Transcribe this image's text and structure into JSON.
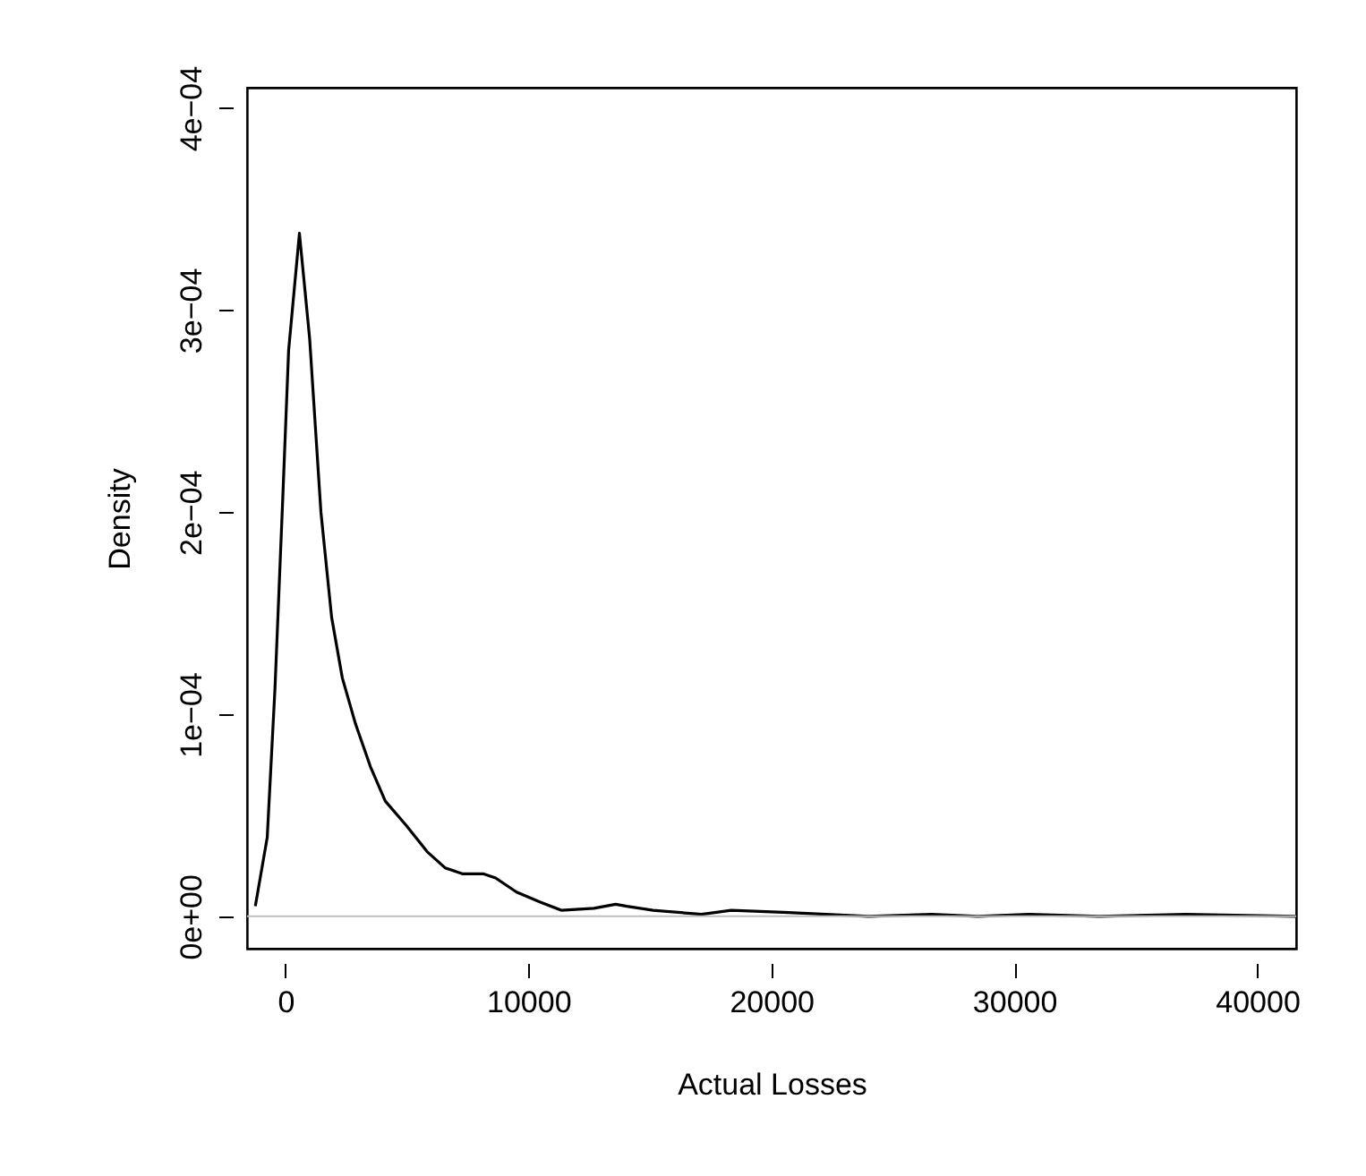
{
  "chart_data": {
    "type": "line",
    "xlabel": "Actual Losses",
    "ylabel": "Density",
    "x": [
      -1240,
      -750,
      -430,
      -110,
      130,
      575,
      995,
      1460,
      1900,
      2340,
      2890,
      3500,
      4110,
      4970,
      5830,
      6570,
      7300,
      8160,
      8650,
      9510,
      10490,
      11350,
      12700,
      13590,
      14050,
      15130,
      17120,
      18350,
      20500,
      24000,
      26600,
      28500,
      30600,
      33500,
      37060,
      41600
    ],
    "series": [
      {
        "color": "#000000",
        "values": [
          5e-06,
          3.9e-05,
          0.000113,
          0.000207,
          0.00028,
          0.000338,
          0.000286,
          0.0002,
          0.000148,
          0.000118,
          9.5e-05,
          7.4e-05,
          5.7e-05,
          4.5e-05,
          3.2e-05,
          2.4e-05,
          2.1e-05,
          2.1e-05,
          1.9e-05,
          1.2e-05,
          7e-06,
          3e-06,
          4e-06,
          6e-06,
          5e-06,
          3e-06,
          1e-06,
          3e-06,
          2e-06,
          0.0,
          1e-06,
          0.0,
          1e-06,
          0.0,
          1e-06,
          0.0
        ]
      }
    ],
    "xlim": [
      -1580,
      41600
    ],
    "xticks": [
      0,
      10000,
      20000,
      30000,
      40000
    ],
    "ylim": [
      -1.6e-05,
      0.00041
    ],
    "yticks": [
      {
        "value": 0,
        "label": "0e+00"
      },
      {
        "value": 0.0001,
        "label": "1e−04"
      },
      {
        "value": 0.0002,
        "label": "2e−04"
      },
      {
        "value": 0.0003,
        "label": "3e−04"
      },
      {
        "value": 0.0004,
        "label": "4e−04"
      }
    ],
    "ref_lines": [
      {
        "axis": "y",
        "value": 0,
        "color": "#bebebe",
        "line_style": "solid"
      }
    ],
    "grid": false,
    "marker": "none",
    "line_style": "solid"
  }
}
